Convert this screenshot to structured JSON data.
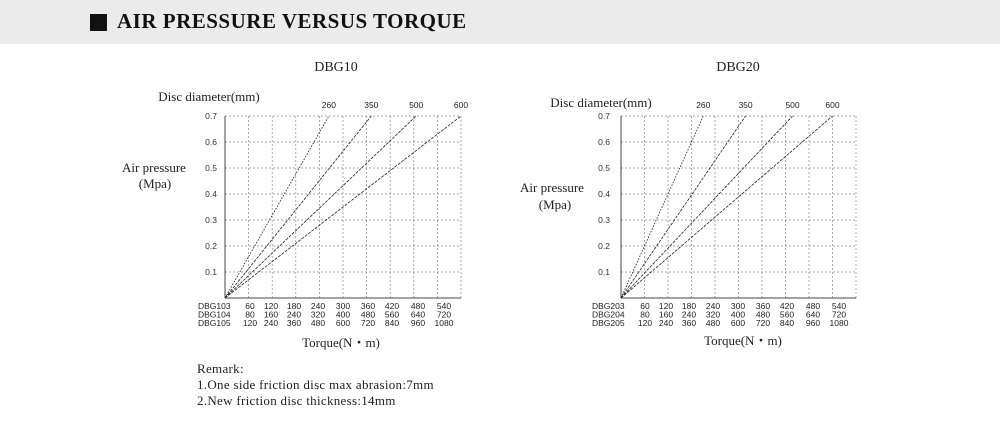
{
  "header": {
    "title": "AIR PRESSURE VERSUS TORQUE"
  },
  "remark": {
    "title": "Remark:",
    "lines": [
      "1.One side friction disc max abrasion:7mm",
      "2.New friction disc thickness:14mm"
    ]
  },
  "chart_data": [
    {
      "type": "line",
      "title": "DBG10",
      "top_label": "Disc diameter(mm)",
      "ylabel": [
        "Air pressure",
        "(Mpa)"
      ],
      "xlabel": "Torque(N・m)",
      "ylim": [
        0,
        0.7
      ],
      "yticks": [
        "0.1",
        "0.2",
        "0.3",
        "0.4",
        "0.5",
        "0.6",
        "0.7"
      ],
      "disc_labels": [
        "260",
        "350",
        "500",
        "600"
      ],
      "torque_rows": [
        {
          "model": "DBG103",
          "values": [
            "60",
            "120",
            "180",
            "240",
            "300",
            "360",
            "420",
            "480",
            "540"
          ]
        },
        {
          "model": "DBG104",
          "values": [
            "80",
            "160",
            "240",
            "320",
            "400",
            "480",
            "560",
            "640",
            "720"
          ]
        },
        {
          "model": "DBG105",
          "values": [
            "120",
            "240",
            "360",
            "480",
            "600",
            "720",
            "840",
            "960",
            "1080"
          ]
        }
      ],
      "grid": true,
      "series": [
        {
          "name": "260",
          "points": [
            [
              0,
              0
            ],
            [
              4.4,
              0.7
            ]
          ]
        },
        {
          "name": "350",
          "points": [
            [
              0,
              0
            ],
            [
              6.2,
              0.7
            ]
          ]
        },
        {
          "name": "500",
          "points": [
            [
              0,
              0
            ],
            [
              8.1,
              0.7
            ]
          ]
        },
        {
          "name": "600",
          "points": [
            [
              0,
              0
            ],
            [
              10.0,
              0.7
            ]
          ]
        }
      ]
    },
    {
      "type": "line",
      "title": "DBG20",
      "top_label": "Disc diameter(mm)",
      "ylabel": [
        "Air pressure",
        "(Mpa)"
      ],
      "xlabel": "Torque(N・m)",
      "ylim": [
        0,
        0.7
      ],
      "yticks": [
        "0.1",
        "0.2",
        "0.3",
        "0.4",
        "0.5",
        "0.6",
        "0.7"
      ],
      "disc_labels": [
        "260",
        "350",
        "500",
        "600"
      ],
      "torque_rows": [
        {
          "model": "DBG203",
          "values": [
            "60",
            "120",
            "180",
            "240",
            "300",
            "360",
            "420",
            "480",
            "540"
          ]
        },
        {
          "model": "DBG204",
          "values": [
            "80",
            "160",
            "240",
            "320",
            "400",
            "480",
            "560",
            "640",
            "720"
          ]
        },
        {
          "model": "DBG205",
          "values": [
            "120",
            "240",
            "360",
            "480",
            "600",
            "720",
            "840",
            "960",
            "1080"
          ]
        }
      ],
      "grid": true,
      "series": [
        {
          "name": "260",
          "points": [
            [
              0,
              0
            ],
            [
              3.5,
              0.7
            ]
          ]
        },
        {
          "name": "350",
          "points": [
            [
              0,
              0
            ],
            [
              5.3,
              0.7
            ]
          ]
        },
        {
          "name": "500",
          "points": [
            [
              0,
              0
            ],
            [
              7.3,
              0.7
            ]
          ]
        },
        {
          "name": "600",
          "points": [
            [
              0,
              0
            ],
            [
              9.0,
              0.7
            ]
          ]
        }
      ]
    }
  ]
}
